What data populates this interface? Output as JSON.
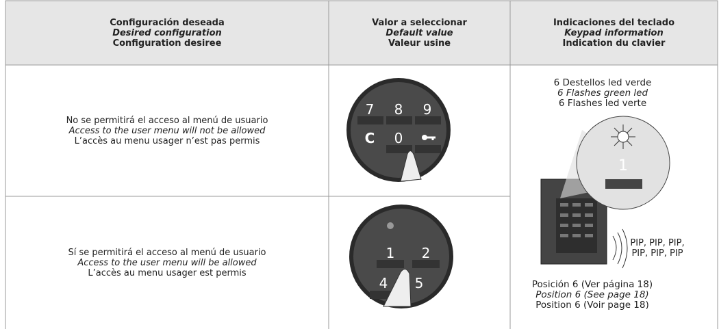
{
  "header": {
    "columns": [
      [
        "Configuración deseada",
        "Desired configuration",
        "Configuration desiree"
      ],
      [
        "Valor a seleccionar",
        "Default value",
        "Valeur usine"
      ],
      [
        "Indicaciones del teclado",
        "Keypad information",
        "Indication du clavier"
      ]
    ]
  },
  "rows": [
    {
      "config": [
        "No se permitirá el acceso al menú de usuario",
        "Access to the user menu will not be allowed",
        "L’accès au menu usager n’est pas permis"
      ],
      "keys": [
        "7",
        "8",
        "9",
        "C",
        "0"
      ]
    },
    {
      "config": [
        "Sí se permitirá el acceso al menú de usuario",
        "Access to the user menu will be allowed",
        "L’accès au menu usager est permis"
      ],
      "keys": [
        "1",
        "2",
        "4",
        "5"
      ]
    }
  ],
  "keypad_info": {
    "flashes": [
      "6 Destellos led verde",
      "6 Flashes green led",
      "6 Flashes led verte"
    ],
    "digit": "1",
    "beeps": [
      "PIP, PIP, PIP,",
      "PIP, PIP, PIP"
    ],
    "position": [
      "Posición 6 (Ver página 18)",
      "Position 6 (See page 18)",
      "Position 6 (Voir page 18)"
    ]
  }
}
